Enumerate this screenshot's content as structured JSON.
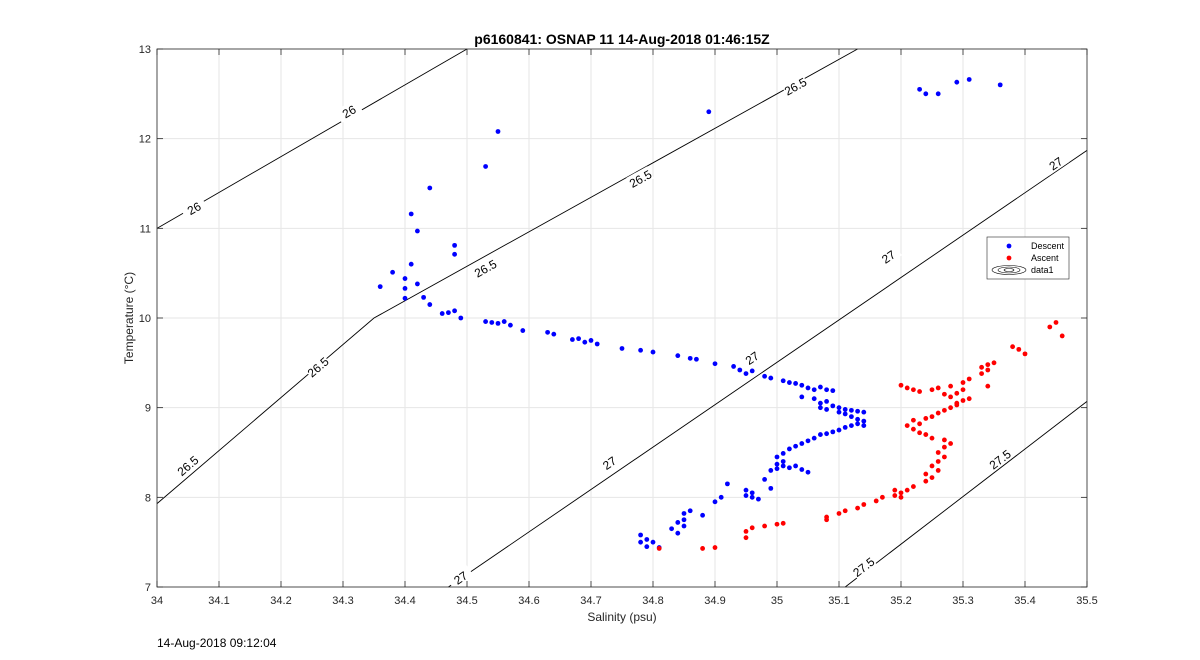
{
  "footer_timestamp": "14-Aug-2018 09:12:04",
  "colors": {
    "descent": "#0000ff",
    "ascent": "#ff0000",
    "contour": "#000000",
    "grid": "#e6e6e6"
  },
  "chart_data": {
    "type": "scatter",
    "title": "p6160841: OSNAP 11 14-Aug-2018 01:46:15Z",
    "xlabel": "Salinity (psu)",
    "ylabel": "Temperature (°C)",
    "xlim": [
      34,
      35.5
    ],
    "ylim": [
      7,
      13
    ],
    "xticks": [
      "34",
      "34.1",
      "34.2",
      "34.3",
      "34.4",
      "34.5",
      "34.6",
      "34.7",
      "34.8",
      "34.9",
      "35",
      "35.1",
      "35.2",
      "35.3",
      "35.4",
      "35.5"
    ],
    "yticks": [
      "7",
      "8",
      "9",
      "10",
      "11",
      "12",
      "13"
    ],
    "grid": true,
    "legend": {
      "placement": "right",
      "entries": [
        "Descent",
        "Ascent",
        "data1"
      ]
    },
    "contours": [
      {
        "level": "26",
        "points": [
          [
            34.0,
            11.0
          ],
          [
            34.5,
            13.0
          ]
        ],
        "labels": [
          [
            34.06,
            11.22
          ],
          [
            34.31,
            12.3
          ]
        ]
      },
      {
        "level": "26.5",
        "points": [
          [
            34.0,
            7.93
          ],
          [
            34.35,
            10.0
          ],
          [
            35.13,
            13.0
          ]
        ],
        "labels": [
          [
            34.05,
            8.35
          ],
          [
            34.26,
            9.45
          ],
          [
            34.53,
            10.55
          ],
          [
            34.78,
            11.55
          ],
          [
            35.03,
            12.58
          ]
        ]
      },
      {
        "level": "27",
        "points": [
          [
            34.47,
            7.0
          ],
          [
            35.5,
            11.87
          ]
        ],
        "labels": [
          [
            34.49,
            7.1
          ],
          [
            34.73,
            8.38
          ],
          [
            34.96,
            9.55
          ],
          [
            35.18,
            10.68
          ],
          [
            35.45,
            11.72
          ]
        ]
      },
      {
        "level": "27.5",
        "points": [
          [
            35.11,
            7.0
          ],
          [
            35.5,
            9.07
          ]
        ],
        "labels": [
          [
            35.14,
            7.22
          ],
          [
            35.36,
            8.42
          ]
        ]
      }
    ],
    "series": [
      {
        "name": "Descent",
        "points": [
          [
            35.36,
            12.6
          ],
          [
            35.31,
            12.66
          ],
          [
            35.29,
            12.63
          ],
          [
            35.23,
            12.55
          ],
          [
            35.24,
            12.5
          ],
          [
            35.26,
            12.5
          ],
          [
            34.89,
            12.3
          ],
          [
            34.55,
            12.08
          ],
          [
            34.53,
            11.69
          ],
          [
            34.44,
            11.45
          ],
          [
            34.41,
            11.16
          ],
          [
            34.42,
            10.97
          ],
          [
            34.48,
            10.81
          ],
          [
            34.48,
            10.71
          ],
          [
            34.41,
            10.6
          ],
          [
            34.38,
            10.51
          ],
          [
            34.36,
            10.35
          ],
          [
            34.4,
            10.44
          ],
          [
            34.4,
            10.33
          ],
          [
            34.4,
            10.22
          ],
          [
            34.42,
            10.38
          ],
          [
            34.43,
            10.23
          ],
          [
            34.44,
            10.15
          ],
          [
            34.46,
            10.05
          ],
          [
            34.47,
            10.06
          ],
          [
            34.48,
            10.08
          ],
          [
            34.49,
            10.0
          ],
          [
            34.53,
            9.96
          ],
          [
            34.54,
            9.95
          ],
          [
            34.55,
            9.94
          ],
          [
            34.56,
            9.96
          ],
          [
            34.57,
            9.92
          ],
          [
            34.59,
            9.86
          ],
          [
            34.63,
            9.84
          ],
          [
            34.64,
            9.82
          ],
          [
            34.67,
            9.76
          ],
          [
            34.68,
            9.77
          ],
          [
            34.69,
            9.73
          ],
          [
            34.7,
            9.75
          ],
          [
            34.71,
            9.71
          ],
          [
            34.75,
            9.66
          ],
          [
            34.78,
            9.64
          ],
          [
            34.8,
            9.62
          ],
          [
            34.84,
            9.58
          ],
          [
            34.86,
            9.55
          ],
          [
            34.87,
            9.54
          ],
          [
            34.9,
            9.49
          ],
          [
            34.93,
            9.46
          ],
          [
            34.94,
            9.42
          ],
          [
            34.95,
            9.38
          ],
          [
            34.96,
            9.41
          ],
          [
            34.98,
            9.35
          ],
          [
            34.99,
            9.33
          ],
          [
            35.01,
            9.3
          ],
          [
            35.02,
            9.28
          ],
          [
            35.03,
            9.27
          ],
          [
            35.04,
            9.25
          ],
          [
            35.05,
            9.22
          ],
          [
            35.06,
            9.2
          ],
          [
            35.07,
            9.23
          ],
          [
            35.08,
            9.2
          ],
          [
            35.09,
            9.19
          ],
          [
            35.04,
            9.12
          ],
          [
            35.06,
            9.1
          ],
          [
            35.07,
            9.05
          ],
          [
            35.07,
            9.0
          ],
          [
            35.08,
            8.98
          ],
          [
            35.08,
            9.07
          ],
          [
            35.09,
            9.02
          ],
          [
            35.1,
            9.0
          ],
          [
            35.11,
            8.98
          ],
          [
            35.12,
            8.97
          ],
          [
            35.13,
            8.96
          ],
          [
            35.14,
            8.95
          ],
          [
            35.1,
            8.95
          ],
          [
            35.11,
            8.93
          ],
          [
            35.12,
            8.9
          ],
          [
            35.13,
            8.87
          ],
          [
            35.14,
            8.85
          ],
          [
            35.14,
            8.8
          ],
          [
            35.13,
            8.82
          ],
          [
            35.12,
            8.8
          ],
          [
            35.11,
            8.78
          ],
          [
            35.1,
            8.75
          ],
          [
            35.09,
            8.73
          ],
          [
            35.08,
            8.71
          ],
          [
            35.07,
            8.7
          ],
          [
            35.06,
            8.66
          ],
          [
            35.05,
            8.63
          ],
          [
            35.04,
            8.6
          ],
          [
            35.03,
            8.57
          ],
          [
            35.02,
            8.54
          ],
          [
            35.01,
            8.49
          ],
          [
            35.0,
            8.45
          ],
          [
            35.01,
            8.4
          ],
          [
            35.0,
            8.37
          ],
          [
            35.01,
            8.35
          ],
          [
            35.02,
            8.33
          ],
          [
            35.03,
            8.35
          ],
          [
            35.04,
            8.31
          ],
          [
            35.05,
            8.28
          ],
          [
            35.0,
            8.32
          ],
          [
            34.99,
            8.3
          ],
          [
            34.98,
            8.2
          ],
          [
            34.99,
            8.1
          ],
          [
            34.96,
            8.05
          ],
          [
            34.95,
            8.02
          ],
          [
            34.96,
            8.0
          ],
          [
            34.97,
            7.98
          ],
          [
            34.95,
            8.08
          ],
          [
            34.92,
            8.15
          ],
          [
            34.91,
            8.0
          ],
          [
            34.9,
            7.95
          ],
          [
            34.88,
            7.8
          ],
          [
            34.86,
            7.85
          ],
          [
            34.85,
            7.82
          ],
          [
            34.85,
            7.75
          ],
          [
            34.84,
            7.72
          ],
          [
            34.85,
            7.68
          ],
          [
            34.83,
            7.65
          ],
          [
            34.84,
            7.6
          ],
          [
            34.78,
            7.58
          ],
          [
            34.78,
            7.5
          ],
          [
            34.79,
            7.53
          ],
          [
            34.8,
            7.5
          ],
          [
            34.79,
            7.45
          ],
          [
            34.81,
            7.44
          ]
        ]
      },
      {
        "name": "Ascent",
        "points": [
          [
            34.81,
            7.43
          ],
          [
            34.88,
            7.43
          ],
          [
            34.9,
            7.44
          ],
          [
            34.95,
            7.55
          ],
          [
            34.95,
            7.62
          ],
          [
            34.96,
            7.66
          ],
          [
            34.98,
            7.68
          ],
          [
            35.0,
            7.7
          ],
          [
            35.01,
            7.71
          ],
          [
            35.08,
            7.75
          ],
          [
            35.08,
            7.78
          ],
          [
            35.1,
            7.82
          ],
          [
            35.11,
            7.85
          ],
          [
            35.13,
            7.88
          ],
          [
            35.14,
            7.92
          ],
          [
            35.16,
            7.96
          ],
          [
            35.17,
            8.0
          ],
          [
            35.19,
            8.02
          ],
          [
            35.2,
            8.05
          ],
          [
            35.21,
            8.08
          ],
          [
            35.2,
            8.0
          ],
          [
            35.19,
            8.08
          ],
          [
            35.22,
            8.12
          ],
          [
            35.24,
            8.18
          ],
          [
            35.25,
            8.22
          ],
          [
            35.24,
            8.26
          ],
          [
            35.26,
            8.3
          ],
          [
            35.25,
            8.35
          ],
          [
            35.26,
            8.4
          ],
          [
            35.27,
            8.45
          ],
          [
            35.26,
            8.5
          ],
          [
            35.27,
            8.56
          ],
          [
            35.28,
            8.6
          ],
          [
            35.27,
            8.64
          ],
          [
            35.25,
            8.66
          ],
          [
            35.24,
            8.7
          ],
          [
            35.23,
            8.72
          ],
          [
            35.22,
            8.76
          ],
          [
            35.21,
            8.8
          ],
          [
            35.23,
            8.82
          ],
          [
            35.22,
            8.86
          ],
          [
            35.24,
            8.88
          ],
          [
            35.25,
            8.9
          ],
          [
            35.26,
            8.94
          ],
          [
            35.27,
            8.97
          ],
          [
            35.28,
            9.0
          ],
          [
            35.29,
            9.03
          ],
          [
            35.29,
            9.05
          ],
          [
            35.3,
            9.08
          ],
          [
            35.31,
            9.1
          ],
          [
            35.28,
            9.12
          ],
          [
            35.27,
            9.15
          ],
          [
            35.29,
            9.16
          ],
          [
            35.3,
            9.2
          ],
          [
            35.2,
            9.25
          ],
          [
            35.21,
            9.22
          ],
          [
            35.22,
            9.2
          ],
          [
            35.23,
            9.18
          ],
          [
            35.25,
            9.2
          ],
          [
            35.26,
            9.22
          ],
          [
            35.28,
            9.24
          ],
          [
            35.3,
            9.28
          ],
          [
            35.31,
            9.32
          ],
          [
            35.33,
            9.38
          ],
          [
            35.34,
            9.42
          ],
          [
            35.33,
            9.45
          ],
          [
            35.34,
            9.48
          ],
          [
            35.35,
            9.5
          ],
          [
            35.34,
            9.24
          ],
          [
            35.38,
            9.68
          ],
          [
            35.39,
            9.65
          ],
          [
            35.4,
            9.6
          ],
          [
            35.44,
            9.9
          ],
          [
            35.45,
            9.95
          ],
          [
            35.46,
            9.8
          ]
        ]
      }
    ]
  }
}
